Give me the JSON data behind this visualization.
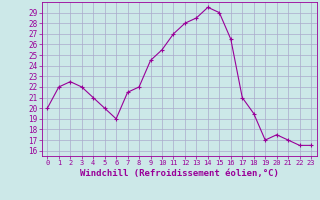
{
  "x": [
    0,
    1,
    2,
    3,
    4,
    5,
    6,
    7,
    8,
    9,
    10,
    11,
    12,
    13,
    14,
    15,
    16,
    17,
    18,
    19,
    20,
    21,
    22,
    23
  ],
  "y": [
    20,
    22,
    22.5,
    22,
    21,
    20,
    19,
    21.5,
    22,
    24.5,
    25.5,
    27,
    28,
    28.5,
    29.5,
    29,
    26.5,
    21,
    19.5,
    17,
    17.5,
    17,
    16.5,
    16.5
  ],
  "line_color": "#990099",
  "marker": "+",
  "marker_size": 3,
  "bg_color": "#cce8e8",
  "grid_color": "#aaaacc",
  "xlabel": "Windchill (Refroidissement éolien,°C)",
  "ylabel_ticks": [
    16,
    17,
    18,
    19,
    20,
    21,
    22,
    23,
    24,
    25,
    26,
    27,
    28,
    29
  ],
  "ylim": [
    15.5,
    30
  ],
  "xlim": [
    -0.5,
    23.5
  ],
  "xtick_labels": [
    "0",
    "1",
    "2",
    "3",
    "4",
    "5",
    "6",
    "7",
    "8",
    "9",
    "10",
    "11",
    "12",
    "13",
    "14",
    "15",
    "16",
    "17",
    "18",
    "19",
    "20",
    "21",
    "22",
    "23"
  ],
  "label_color": "#990099",
  "tick_color": "#990099",
  "xlabel_fontsize": 6.5,
  "ytick_fontsize": 5.5,
  "xtick_fontsize": 5.0,
  "linewidth": 0.8,
  "markeredgewidth": 0.8
}
